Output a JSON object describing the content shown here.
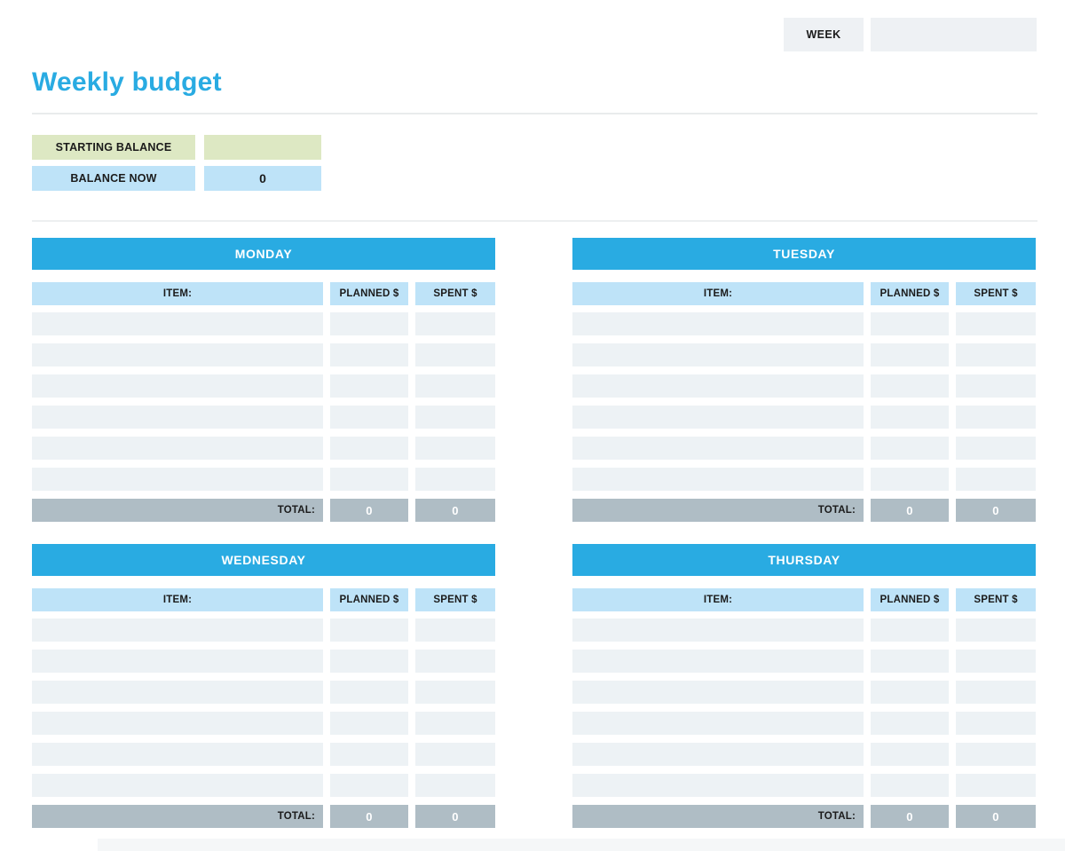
{
  "header": {
    "week_label": "WEEK",
    "week_value": ""
  },
  "title": "Weekly budget",
  "balance": {
    "starting_label": "STARTING BALANCE",
    "starting_value": "",
    "balance_now_label": "BALANCE NOW",
    "balance_now_value": "0"
  },
  "day_table": {
    "item_header": "ITEM:",
    "planned_header": "PLANNED $",
    "spent_header": "SPENT $",
    "total_label": "TOTAL:"
  },
  "days": [
    {
      "name": "MONDAY",
      "rows": [
        {
          "item": "",
          "planned": "",
          "spent": ""
        },
        {
          "item": "",
          "planned": "",
          "spent": ""
        },
        {
          "item": "",
          "planned": "",
          "spent": ""
        },
        {
          "item": "",
          "planned": "",
          "spent": ""
        },
        {
          "item": "",
          "planned": "",
          "spent": ""
        },
        {
          "item": "",
          "planned": "",
          "spent": ""
        }
      ],
      "total_planned": "0",
      "total_spent": "0"
    },
    {
      "name": "TUESDAY",
      "rows": [
        {
          "item": "",
          "planned": "",
          "spent": ""
        },
        {
          "item": "",
          "planned": "",
          "spent": ""
        },
        {
          "item": "",
          "planned": "",
          "spent": ""
        },
        {
          "item": "",
          "planned": "",
          "spent": ""
        },
        {
          "item": "",
          "planned": "",
          "spent": ""
        },
        {
          "item": "",
          "planned": "",
          "spent": ""
        }
      ],
      "total_planned": "0",
      "total_spent": "0"
    },
    {
      "name": "WEDNESDAY",
      "rows": [
        {
          "item": "",
          "planned": "",
          "spent": ""
        },
        {
          "item": "",
          "planned": "",
          "spent": ""
        },
        {
          "item": "",
          "planned": "",
          "spent": ""
        },
        {
          "item": "",
          "planned": "",
          "spent": ""
        },
        {
          "item": "",
          "planned": "",
          "spent": ""
        },
        {
          "item": "",
          "planned": "",
          "spent": ""
        }
      ],
      "total_planned": "0",
      "total_spent": "0"
    },
    {
      "name": "THURSDAY",
      "rows": [
        {
          "item": "",
          "planned": "",
          "spent": ""
        },
        {
          "item": "",
          "planned": "",
          "spent": ""
        },
        {
          "item": "",
          "planned": "",
          "spent": ""
        },
        {
          "item": "",
          "planned": "",
          "spent": ""
        },
        {
          "item": "",
          "planned": "",
          "spent": ""
        },
        {
          "item": "",
          "planned": "",
          "spent": ""
        }
      ],
      "total_planned": "0",
      "total_spent": "0"
    }
  ],
  "colors": {
    "accent_blue": "#29ABE2",
    "light_blue": "#BEE3F8",
    "light_green": "#DDE8C3",
    "row_gray": "#EDF2F5",
    "total_gray": "#AFBDC5",
    "box_gray": "#EEF1F4"
  }
}
